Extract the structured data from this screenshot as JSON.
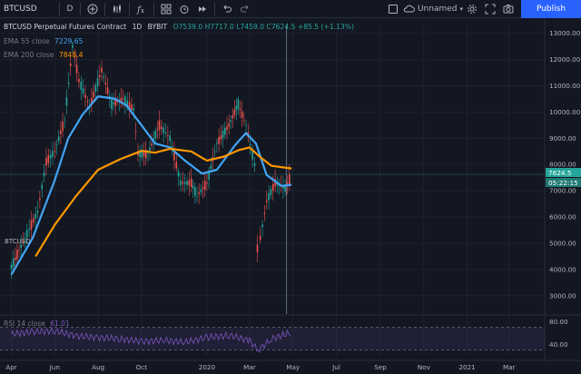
{
  "toolbar": {
    "symbol": "BTCUSD",
    "interval": "D",
    "layout_name": "Unnamed",
    "publish_label": "Publish",
    "icons": [
      "plus-circle-icon",
      "bar-style-icon",
      "indicators-icon",
      "undo-icon",
      "redo-icon",
      "settings-icon",
      "camera-icon"
    ]
  },
  "legend": {
    "title": "BTCUSD Perpetual Futures Contract",
    "interval": "1D",
    "exchange": "BYBIT",
    "open": "O7539.0",
    "high": "H7717.0",
    "low": "L7459.0",
    "close": "C7624.5",
    "change": "+85.5 (+1.13%)",
    "ema55_label": "EMA 55 close",
    "ema55_value": "7229.65",
    "ema200_label": "EMA 200 close",
    "ema200_value": "7848.4"
  },
  "rsi": {
    "label": "RSI 14 close",
    "value": "61.01"
  },
  "symbol_tag": "BTCUSD",
  "price_tags": {
    "last": "7624.5",
    "countdown": "05:22:15"
  },
  "colors": {
    "background": "#131722",
    "candle_up": "#26a69a",
    "candle_down": "#ef5350",
    "ema55": "#42a5f5",
    "ema200": "#ff9800",
    "rsi": "#7e57c2",
    "last_price_line": "#26a69a"
  },
  "chart_data": {
    "type": "line",
    "title": "BTCUSD Perpetual Futures Contract",
    "price_scale_ticks": [
      3000,
      4000,
      5000,
      6000,
      7000,
      8000,
      9000,
      10000,
      11000,
      12000,
      13000
    ],
    "price_scale_labels": [
      "3000.00",
      "4000.00",
      "5000.00",
      "6000.00",
      "7000.00",
      "8000.00",
      "9000.00",
      "10000.00",
      "11000.00",
      "12000.00",
      "13000.00"
    ],
    "time_ticks": [
      "Apr",
      "Jun",
      "Aug",
      "Oct",
      "2020",
      "Mar",
      "May",
      "Jul",
      "Sep",
      "Nov",
      "2021",
      "Mar"
    ],
    "ylim": [
      2300,
      13300
    ],
    "series": [
      {
        "name": "BTCUSD",
        "x": [
          "2019-04-01",
          "2019-04-20",
          "2019-05-08",
          "2019-05-20",
          "2019-06-01",
          "2019-06-15",
          "2019-06-26",
          "2019-07-05",
          "2019-07-20",
          "2019-08-06",
          "2019-08-20",
          "2019-09-05",
          "2019-09-20",
          "2019-09-26",
          "2019-10-10",
          "2019-10-26",
          "2019-11-10",
          "2019-11-25",
          "2019-12-10",
          "2019-12-18",
          "2020-01-01",
          "2020-01-15",
          "2020-02-01",
          "2020-02-14",
          "2020-02-25",
          "2020-03-08",
          "2020-03-12",
          "2020-03-16",
          "2020-03-25",
          "2020-04-06",
          "2020-04-20",
          "2020-04-29"
        ],
        "values": [
          4100,
          5200,
          6200,
          8100,
          8500,
          9700,
          12500,
          11200,
          10200,
          11600,
          10300,
          10500,
          10100,
          8400,
          8400,
          9500,
          9000,
          7300,
          7300,
          6800,
          7300,
          8800,
          9500,
          10300,
          9500,
          8000,
          4800,
          5200,
          6600,
          7300,
          7100,
          7624.5
        ]
      },
      {
        "name": "EMA 55 close",
        "x": [
          "2019-04-01",
          "2019-05-01",
          "2019-06-01",
          "2019-06-20",
          "2019-07-10",
          "2019-08-01",
          "2019-08-25",
          "2019-09-10",
          "2019-10-01",
          "2019-10-20",
          "2019-11-10",
          "2019-12-01",
          "2019-12-25",
          "2020-01-15",
          "2020-02-10",
          "2020-02-25",
          "2020-03-10",
          "2020-03-25",
          "2020-04-15",
          "2020-04-29"
        ],
        "values": [
          3800,
          5200,
          7400,
          9000,
          9900,
          10600,
          10500,
          10250,
          9500,
          8800,
          8650,
          8150,
          7650,
          7800,
          8750,
          9200,
          8800,
          7600,
          7180,
          7229.65
        ]
      },
      {
        "name": "EMA 200 close",
        "x": [
          "2019-05-05",
          "2019-06-01",
          "2019-07-01",
          "2019-08-01",
          "2019-09-01",
          "2019-10-01",
          "2019-10-20",
          "2019-11-10",
          "2019-12-10",
          "2020-01-01",
          "2020-01-25",
          "2020-02-15",
          "2020-03-01",
          "2020-03-15",
          "2020-04-01",
          "2020-04-29"
        ],
        "values": [
          4500,
          5700,
          6800,
          7800,
          8200,
          8520,
          8450,
          8600,
          8500,
          8150,
          8300,
          8550,
          8650,
          8300,
          7950,
          7848.4
        ]
      },
      {
        "name": "RSI 14 close",
        "x": [
          "2019-04-01",
          "2019-05-01",
          "2019-06-01",
          "2019-07-01",
          "2019-08-01",
          "2019-09-01",
          "2019-10-01",
          "2019-11-01",
          "2019-12-01",
          "2020-01-01",
          "2020-02-01",
          "2020-03-01",
          "2020-03-13",
          "2020-04-01",
          "2020-04-29"
        ],
        "values": [
          58,
          62,
          64,
          55,
          52,
          50,
          45,
          47,
          44,
          52,
          56,
          47,
          30,
          50,
          61.01
        ]
      }
    ],
    "rsi_ticks": [
      40,
      80
    ],
    "rsi_labels": [
      "40.00",
      "80.00"
    ],
    "rsi_bands": [
      30,
      70
    ]
  }
}
